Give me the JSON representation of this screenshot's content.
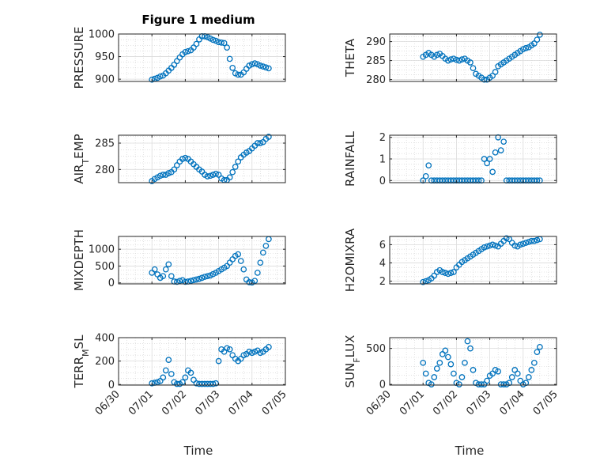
{
  "figure": {
    "title": "Figure 1 medium",
    "xlabel": "Time",
    "x_tick_labels": [
      "06/30",
      "07/01",
      "07/02",
      "07/03",
      "07/04",
      "07/05"
    ]
  },
  "colors": {
    "marker": "#0072BD",
    "axis": "#262626",
    "grid_minor": "#cfcfcf",
    "grid_major": "#dcdcdc"
  },
  "chart_data": [
    {
      "type": "scatter",
      "ylabel": "PRESSURE",
      "xlim": [
        "06/30",
        "07/05"
      ],
      "ylim": [
        895,
        1000
      ],
      "yticks": [
        900,
        950,
        1000
      ],
      "grid": true,
      "series": [
        {
          "x": [
            "07/01 00:00",
            "07/01 02:00",
            "07/01 04:00",
            "07/01 06:00",
            "07/01 08:00",
            "07/01 10:00",
            "07/01 12:00",
            "07/01 14:00",
            "07/01 16:00",
            "07/01 18:00",
            "07/01 20:00",
            "07/01 22:00",
            "07/02 00:00",
            "07/02 02:00",
            "07/02 04:00",
            "07/02 06:00",
            "07/02 08:00",
            "07/02 10:00",
            "07/02 12:00",
            "07/02 14:00",
            "07/02 16:00",
            "07/02 18:00",
            "07/02 20:00",
            "07/02 22:00",
            "07/03 00:00",
            "07/03 02:00",
            "07/03 04:00",
            "07/03 06:00",
            "07/03 08:00",
            "07/03 10:00",
            "07/03 12:00",
            "07/03 14:00",
            "07/03 16:00",
            "07/03 18:00",
            "07/03 20:00",
            "07/03 22:00",
            "07/04 00:00",
            "07/04 02:00",
            "07/04 04:00",
            "07/04 06:00",
            "07/04 08:00",
            "07/04 10:00",
            "07/04 12:00"
          ],
          "values": [
            899,
            901,
            903,
            906,
            908,
            913,
            919,
            925,
            932,
            940,
            948,
            955,
            960,
            962,
            964,
            970,
            978,
            988,
            995,
            995,
            993,
            990,
            987,
            985,
            982,
            981,
            980,
            970,
            945,
            925,
            913,
            910,
            910,
            915,
            923,
            930,
            933,
            935,
            933,
            930,
            928,
            926,
            924
          ]
        }
      ]
    },
    {
      "type": "scatter",
      "ylabel": "THETA",
      "xlim": [
        "06/30",
        "07/05"
      ],
      "ylim": [
        279.5,
        292
      ],
      "yticks": [
        280,
        285,
        290
      ],
      "grid": true,
      "series": [
        {
          "x": [
            "07/01 00:00",
            "07/01 02:00",
            "07/01 04:00",
            "07/01 06:00",
            "07/01 08:00",
            "07/01 10:00",
            "07/01 12:00",
            "07/01 14:00",
            "07/01 16:00",
            "07/01 18:00",
            "07/01 20:00",
            "07/01 22:00",
            "07/02 00:00",
            "07/02 02:00",
            "07/02 04:00",
            "07/02 06:00",
            "07/02 08:00",
            "07/02 10:00",
            "07/02 12:00",
            "07/02 14:00",
            "07/02 16:00",
            "07/02 18:00",
            "07/02 20:00",
            "07/02 22:00",
            "07/03 00:00",
            "07/03 02:00",
            "07/03 04:00",
            "07/03 06:00",
            "07/03 08:00",
            "07/03 10:00",
            "07/03 12:00",
            "07/03 14:00",
            "07/03 16:00",
            "07/03 18:00",
            "07/03 20:00",
            "07/03 22:00",
            "07/04 00:00",
            "07/04 02:00",
            "07/04 04:00",
            "07/04 06:00",
            "07/04 08:00",
            "07/04 10:00",
            "07/04 12:00"
          ],
          "values": [
            286,
            286.5,
            287,
            286.5,
            286,
            286.5,
            286.8,
            286.2,
            285.5,
            285,
            285.3,
            285.5,
            285.2,
            285,
            285.3,
            285.5,
            285,
            284.5,
            283,
            281.5,
            281,
            280.5,
            280,
            280,
            280.5,
            281,
            282,
            283.5,
            284,
            284.5,
            285,
            285.5,
            286,
            286.5,
            287,
            287.5,
            288,
            288.3,
            288.5,
            289,
            289.5,
            290.5,
            291.8
          ]
        }
      ]
    },
    {
      "type": "scatter",
      "ylabel": "AIR_TEMP",
      "xlim": [
        "06/30",
        "07/05"
      ],
      "ylim": [
        277.5,
        286.5
      ],
      "yticks": [
        280,
        285
      ],
      "grid": true,
      "series": [
        {
          "x": [
            "07/01 00:00",
            "07/01 02:00",
            "07/01 04:00",
            "07/01 06:00",
            "07/01 08:00",
            "07/01 10:00",
            "07/01 12:00",
            "07/01 14:00",
            "07/01 16:00",
            "07/01 18:00",
            "07/01 20:00",
            "07/01 22:00",
            "07/02 00:00",
            "07/02 02:00",
            "07/02 04:00",
            "07/02 06:00",
            "07/02 08:00",
            "07/02 10:00",
            "07/02 12:00",
            "07/02 14:00",
            "07/02 16:00",
            "07/02 18:00",
            "07/02 20:00",
            "07/02 22:00",
            "07/03 00:00",
            "07/03 02:00",
            "07/03 04:00",
            "07/03 06:00",
            "07/03 08:00",
            "07/03 10:00",
            "07/03 12:00",
            "07/03 14:00",
            "07/03 16:00",
            "07/03 18:00",
            "07/03 20:00",
            "07/03 22:00",
            "07/04 00:00",
            "07/04 02:00",
            "07/04 04:00",
            "07/04 06:00",
            "07/04 08:00",
            "07/04 10:00",
            "07/04 12:00"
          ],
          "values": [
            277.8,
            278.2,
            278.5,
            278.8,
            279,
            279,
            279.3,
            279.5,
            280,
            280.8,
            281.5,
            282,
            282.2,
            282,
            281.5,
            281,
            280.5,
            280,
            279.6,
            279,
            278.7,
            278.8,
            279,
            279.2,
            279,
            278.3,
            278,
            278,
            278.5,
            279.5,
            280.5,
            281.5,
            282.3,
            282.8,
            283.2,
            283.5,
            284,
            284.5,
            285,
            285,
            285.2,
            285.8,
            286.2
          ]
        }
      ]
    },
    {
      "type": "scatter",
      "ylabel": "RAINFALL",
      "xlim": [
        "06/30",
        "07/05"
      ],
      "ylim": [
        -0.1,
        2.1
      ],
      "yticks": [
        0,
        1,
        2
      ],
      "grid": true,
      "series": [
        {
          "x": [
            "07/01 00:00",
            "07/01 02:00",
            "07/01 04:00",
            "07/01 06:00",
            "07/01 08:00",
            "07/01 10:00",
            "07/01 12:00",
            "07/01 14:00",
            "07/01 16:00",
            "07/01 18:00",
            "07/01 20:00",
            "07/01 22:00",
            "07/02 00:00",
            "07/02 02:00",
            "07/02 04:00",
            "07/02 06:00",
            "07/02 08:00",
            "07/02 10:00",
            "07/02 12:00",
            "07/02 14:00",
            "07/02 16:00",
            "07/02 18:00",
            "07/02 20:00",
            "07/02 22:00",
            "07/03 00:00",
            "07/03 02:00",
            "07/03 04:00",
            "07/03 06:00",
            "07/03 08:00",
            "07/03 10:00",
            "07/03 12:00",
            "07/03 14:00",
            "07/03 16:00",
            "07/03 18:00",
            "07/03 20:00",
            "07/03 22:00",
            "07/04 00:00",
            "07/04 02:00",
            "07/04 04:00",
            "07/04 06:00",
            "07/04 08:00",
            "07/04 10:00",
            "07/04 12:00"
          ],
          "values": [
            0,
            0.2,
            0.7,
            0,
            0,
            0,
            0,
            0,
            0,
            0,
            0,
            0,
            0,
            0,
            0,
            0,
            0,
            0,
            0,
            0,
            0,
            0,
            1.0,
            0.8,
            1.0,
            0.4,
            1.3,
            2.0,
            1.4,
            1.8,
            0,
            0,
            0,
            0,
            0,
            0,
            0,
            0,
            0,
            0,
            0,
            0,
            0
          ]
        }
      ]
    },
    {
      "type": "scatter",
      "ylabel": "MIXDEPTH",
      "xlim": [
        "06/30",
        "07/05"
      ],
      "ylim": [
        -30,
        1380
      ],
      "yticks": [
        0,
        500,
        1000
      ],
      "grid": true,
      "series": [
        {
          "x": [
            "07/01 00:00",
            "07/01 02:00",
            "07/01 04:00",
            "07/01 06:00",
            "07/01 08:00",
            "07/01 10:00",
            "07/01 12:00",
            "07/01 14:00",
            "07/01 16:00",
            "07/01 18:00",
            "07/01 20:00",
            "07/01 22:00",
            "07/02 00:00",
            "07/02 02:00",
            "07/02 04:00",
            "07/02 06:00",
            "07/02 08:00",
            "07/02 10:00",
            "07/02 12:00",
            "07/02 14:00",
            "07/02 16:00",
            "07/02 18:00",
            "07/02 20:00",
            "07/02 22:00",
            "07/03 00:00",
            "07/03 02:00",
            "07/03 04:00",
            "07/03 06:00",
            "07/03 08:00",
            "07/03 10:00",
            "07/03 12:00",
            "07/03 14:00",
            "07/03 16:00",
            "07/03 18:00",
            "07/03 20:00",
            "07/03 22:00",
            "07/04 00:00",
            "07/04 02:00",
            "07/04 04:00",
            "07/04 06:00",
            "07/04 08:00",
            "07/04 10:00",
            "07/04 12:00"
          ],
          "values": [
            300,
            400,
            250,
            150,
            200,
            400,
            550,
            200,
            40,
            30,
            60,
            80,
            30,
            40,
            60,
            80,
            100,
            120,
            150,
            180,
            200,
            220,
            260,
            300,
            350,
            400,
            450,
            500,
            600,
            700,
            800,
            850,
            650,
            400,
            100,
            20,
            10,
            60,
            300,
            600,
            900,
            1100,
            1300
          ]
        }
      ]
    },
    {
      "type": "scatter",
      "ylabel": "H2OMIXRA",
      "xlim": [
        "06/30",
        "07/05"
      ],
      "ylim": [
        1.7,
        6.9
      ],
      "yticks": [
        2,
        4,
        6
      ],
      "grid": true,
      "series": [
        {
          "x": [
            "07/01 00:00",
            "07/01 02:00",
            "07/01 04:00",
            "07/01 06:00",
            "07/01 08:00",
            "07/01 10:00",
            "07/01 12:00",
            "07/01 14:00",
            "07/01 16:00",
            "07/01 18:00",
            "07/01 20:00",
            "07/01 22:00",
            "07/02 00:00",
            "07/02 02:00",
            "07/02 04:00",
            "07/02 06:00",
            "07/02 08:00",
            "07/02 10:00",
            "07/02 12:00",
            "07/02 14:00",
            "07/02 16:00",
            "07/02 18:00",
            "07/02 20:00",
            "07/02 22:00",
            "07/03 00:00",
            "07/03 02:00",
            "07/03 04:00",
            "07/03 06:00",
            "07/03 08:00",
            "07/03 10:00",
            "07/03 12:00",
            "07/03 14:00",
            "07/03 16:00",
            "07/03 18:00",
            "07/03 20:00",
            "07/03 22:00",
            "07/04 00:00",
            "07/04 02:00",
            "07/04 04:00",
            "07/04 06:00",
            "07/04 08:00",
            "07/04 10:00",
            "07/04 12:00"
          ],
          "values": [
            1.9,
            2.0,
            2.1,
            2.3,
            2.6,
            3.0,
            3.2,
            3.0,
            2.9,
            2.8,
            2.9,
            3.0,
            3.5,
            3.8,
            4.1,
            4.3,
            4.5,
            4.7,
            4.9,
            5.1,
            5.3,
            5.5,
            5.7,
            5.8,
            5.9,
            6.0,
            5.9,
            5.8,
            6.1,
            6.4,
            6.7,
            6.6,
            6.2,
            5.9,
            5.8,
            6.0,
            6.1,
            6.2,
            6.3,
            6.4,
            6.4,
            6.5,
            6.6
          ]
        }
      ]
    },
    {
      "type": "scatter",
      "ylabel": "TERR_MSL",
      "xlim": [
        "06/30",
        "07/05"
      ],
      "ylim": [
        -5,
        400
      ],
      "yticks": [
        0,
        200,
        400
      ],
      "grid": true,
      "series": [
        {
          "x": [
            "07/01 00:00",
            "07/01 02:00",
            "07/01 04:00",
            "07/01 06:00",
            "07/01 08:00",
            "07/01 10:00",
            "07/01 12:00",
            "07/01 14:00",
            "07/01 16:00",
            "07/01 18:00",
            "07/01 20:00",
            "07/01 22:00",
            "07/02 00:00",
            "07/02 02:00",
            "07/02 04:00",
            "07/02 06:00",
            "07/02 08:00",
            "07/02 10:00",
            "07/02 12:00",
            "07/02 14:00",
            "07/02 16:00",
            "07/02 18:00",
            "07/02 20:00",
            "07/02 22:00",
            "07/03 00:00",
            "07/03 02:00",
            "07/03 04:00",
            "07/03 06:00",
            "07/03 08:00",
            "07/03 10:00",
            "07/03 12:00",
            "07/03 14:00",
            "07/03 16:00",
            "07/03 18:00",
            "07/03 20:00",
            "07/03 22:00",
            "07/04 00:00",
            "07/04 02:00",
            "07/04 04:00",
            "07/04 06:00",
            "07/04 08:00",
            "07/04 10:00",
            "07/04 12:00"
          ],
          "values": [
            10,
            15,
            20,
            30,
            60,
            120,
            210,
            90,
            20,
            5,
            5,
            20,
            60,
            120,
            100,
            40,
            10,
            5,
            5,
            5,
            5,
            5,
            5,
            10,
            200,
            300,
            280,
            310,
            300,
            250,
            220,
            200,
            220,
            250,
            260,
            280,
            270,
            280,
            290,
            270,
            280,
            300,
            320
          ]
        }
      ]
    },
    {
      "type": "scatter",
      "ylabel": "SUN_FLUX",
      "xlim": [
        "06/30",
        "07/05"
      ],
      "ylim": [
        -10,
        650
      ],
      "yticks": [
        0,
        500
      ],
      "grid": true,
      "series": [
        {
          "x": [
            "07/01 00:00",
            "07/01 02:00",
            "07/01 04:00",
            "07/01 06:00",
            "07/01 08:00",
            "07/01 10:00",
            "07/01 12:00",
            "07/01 14:00",
            "07/01 16:00",
            "07/01 18:00",
            "07/01 20:00",
            "07/01 22:00",
            "07/02 00:00",
            "07/02 02:00",
            "07/02 04:00",
            "07/02 06:00",
            "07/02 08:00",
            "07/02 10:00",
            "07/02 12:00",
            "07/02 14:00",
            "07/02 16:00",
            "07/02 18:00",
            "07/02 20:00",
            "07/02 22:00",
            "07/03 00:00",
            "07/03 02:00",
            "07/03 04:00",
            "07/03 06:00",
            "07/03 08:00",
            "07/03 10:00",
            "07/03 12:00",
            "07/03 14:00",
            "07/03 16:00",
            "07/03 18:00",
            "07/03 20:00",
            "07/03 22:00",
            "07/04 00:00",
            "07/04 02:00",
            "07/04 04:00",
            "07/04 06:00",
            "07/04 08:00",
            "07/04 10:00",
            "07/04 12:00"
          ],
          "values": [
            300,
            150,
            20,
            0,
            100,
            220,
            300,
            420,
            470,
            380,
            280,
            150,
            20,
            0,
            100,
            300,
            600,
            500,
            200,
            20,
            0,
            0,
            0,
            50,
            120,
            150,
            200,
            180,
            0,
            0,
            0,
            20,
            100,
            200,
            150,
            50,
            0,
            20,
            100,
            200,
            300,
            450,
            520
          ]
        }
      ]
    }
  ]
}
